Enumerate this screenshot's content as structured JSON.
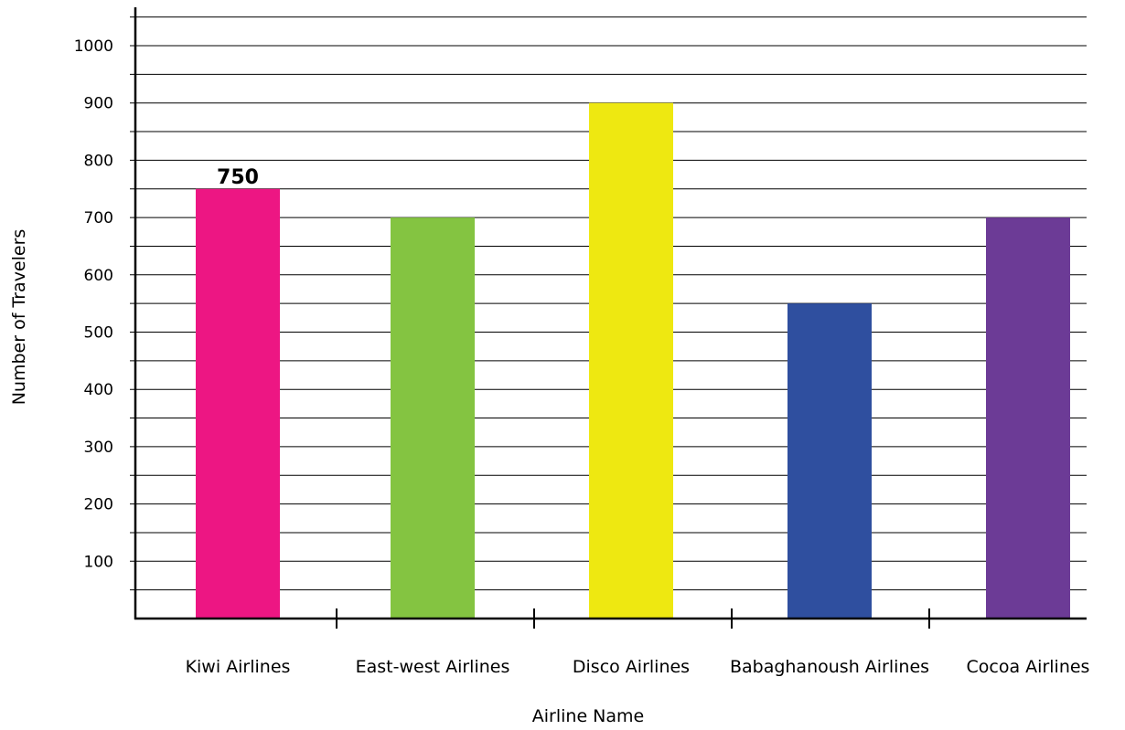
{
  "chart_data": {
    "type": "bar",
    "categories": [
      "Kiwi Airlines",
      "East-west Airlines",
      "Disco Airlines",
      "Babaghanoush Airlines",
      "Cocoa Airlines"
    ],
    "values": [
      750,
      700,
      900,
      550,
      700
    ],
    "colors": [
      "#ed1683",
      "#84c441",
      "#eee811",
      "#2f4f9f",
      "#6c3b96"
    ],
    "data_labels": [
      "750",
      "",
      "",
      "",
      ""
    ],
    "title": "",
    "xlabel": "Airline Name",
    "ylabel": "Number of Travelers",
    "ylim": [
      0,
      1050
    ],
    "yticks": [
      100,
      200,
      300,
      400,
      500,
      600,
      700,
      800,
      900,
      1000
    ],
    "grid": true,
    "legend": "none"
  }
}
